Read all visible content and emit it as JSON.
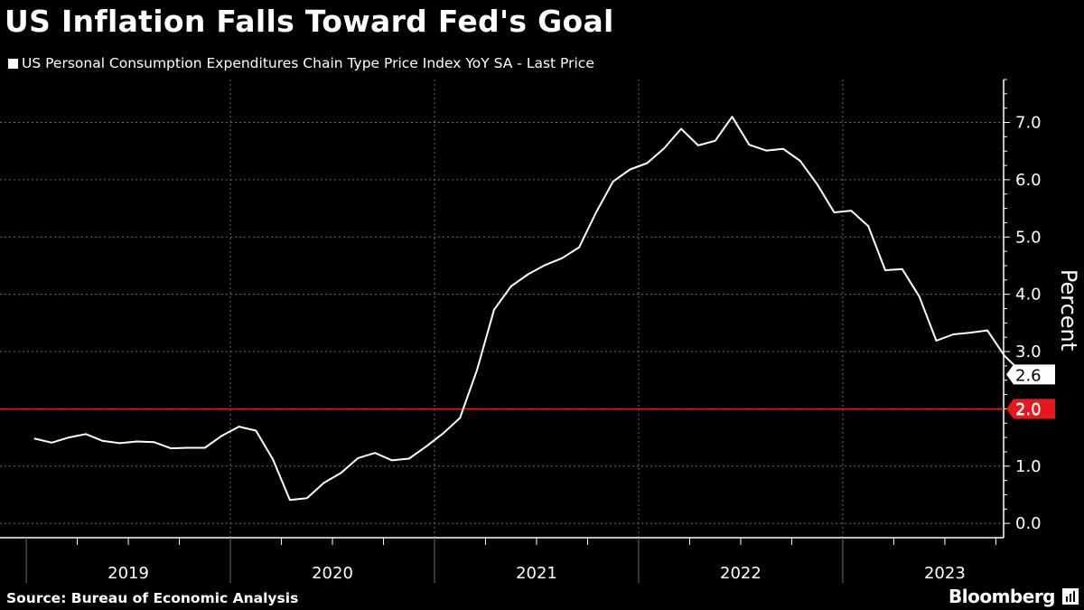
{
  "title": "US Inflation Falls Toward Fed's Goal",
  "legend_label": "US Personal Consumption Expenditures Chain Type Price Index YoY SA - Last Price",
  "source": "Source: Bureau of Economic Analysis",
  "brand": "Bloomberg",
  "colors": {
    "background": "#000000",
    "line": "#ffffff",
    "target_line": "#e8171e",
    "grid": "#6b6b6b",
    "text": "#ffffff"
  },
  "chart_data": {
    "type": "line",
    "title": "US Inflation Falls Toward Fed's Goal",
    "ylabel": "Percent",
    "xlabel": "",
    "ylim": [
      -0.25,
      7.75
    ],
    "yticks": [
      0.0,
      1.0,
      2.0,
      3.0,
      4.0,
      5.0,
      6.0,
      7.0
    ],
    "ytick_labels": [
      "0.0",
      "1.0",
      "2.0",
      "3.0",
      "4.0",
      "5.0",
      "6.0",
      "7.0"
    ],
    "year_labels": [
      "2019",
      "2020",
      "2021",
      "2022",
      "2023"
    ],
    "grid": true,
    "series": [
      {
        "name": "US Personal Consumption Expenditures Chain Type Price Index YoY SA - Last Price",
        "start": "2019-01",
        "frequency": "monthly",
        "values": [
          1.48,
          1.41,
          1.5,
          1.56,
          1.44,
          1.4,
          1.43,
          1.42,
          1.31,
          1.32,
          1.32,
          1.53,
          1.69,
          1.62,
          1.12,
          0.41,
          0.44,
          0.71,
          0.88,
          1.14,
          1.23,
          1.1,
          1.13,
          1.34,
          1.57,
          1.84,
          2.68,
          3.73,
          4.14,
          4.35,
          4.51,
          4.63,
          4.82,
          5.43,
          5.97,
          6.18,
          6.29,
          6.55,
          6.89,
          6.6,
          6.68,
          7.1,
          6.61,
          6.51,
          6.54,
          6.33,
          5.92,
          5.43,
          5.46,
          5.19,
          4.42,
          4.44,
          3.96,
          3.19,
          3.3,
          3.33,
          3.37,
          2.93,
          2.64
        ]
      }
    ],
    "reference_line": {
      "name": "Fed target",
      "value": 2.0,
      "label": "2.0"
    },
    "last_value": 2.6,
    "last_value_label": "2.6"
  }
}
